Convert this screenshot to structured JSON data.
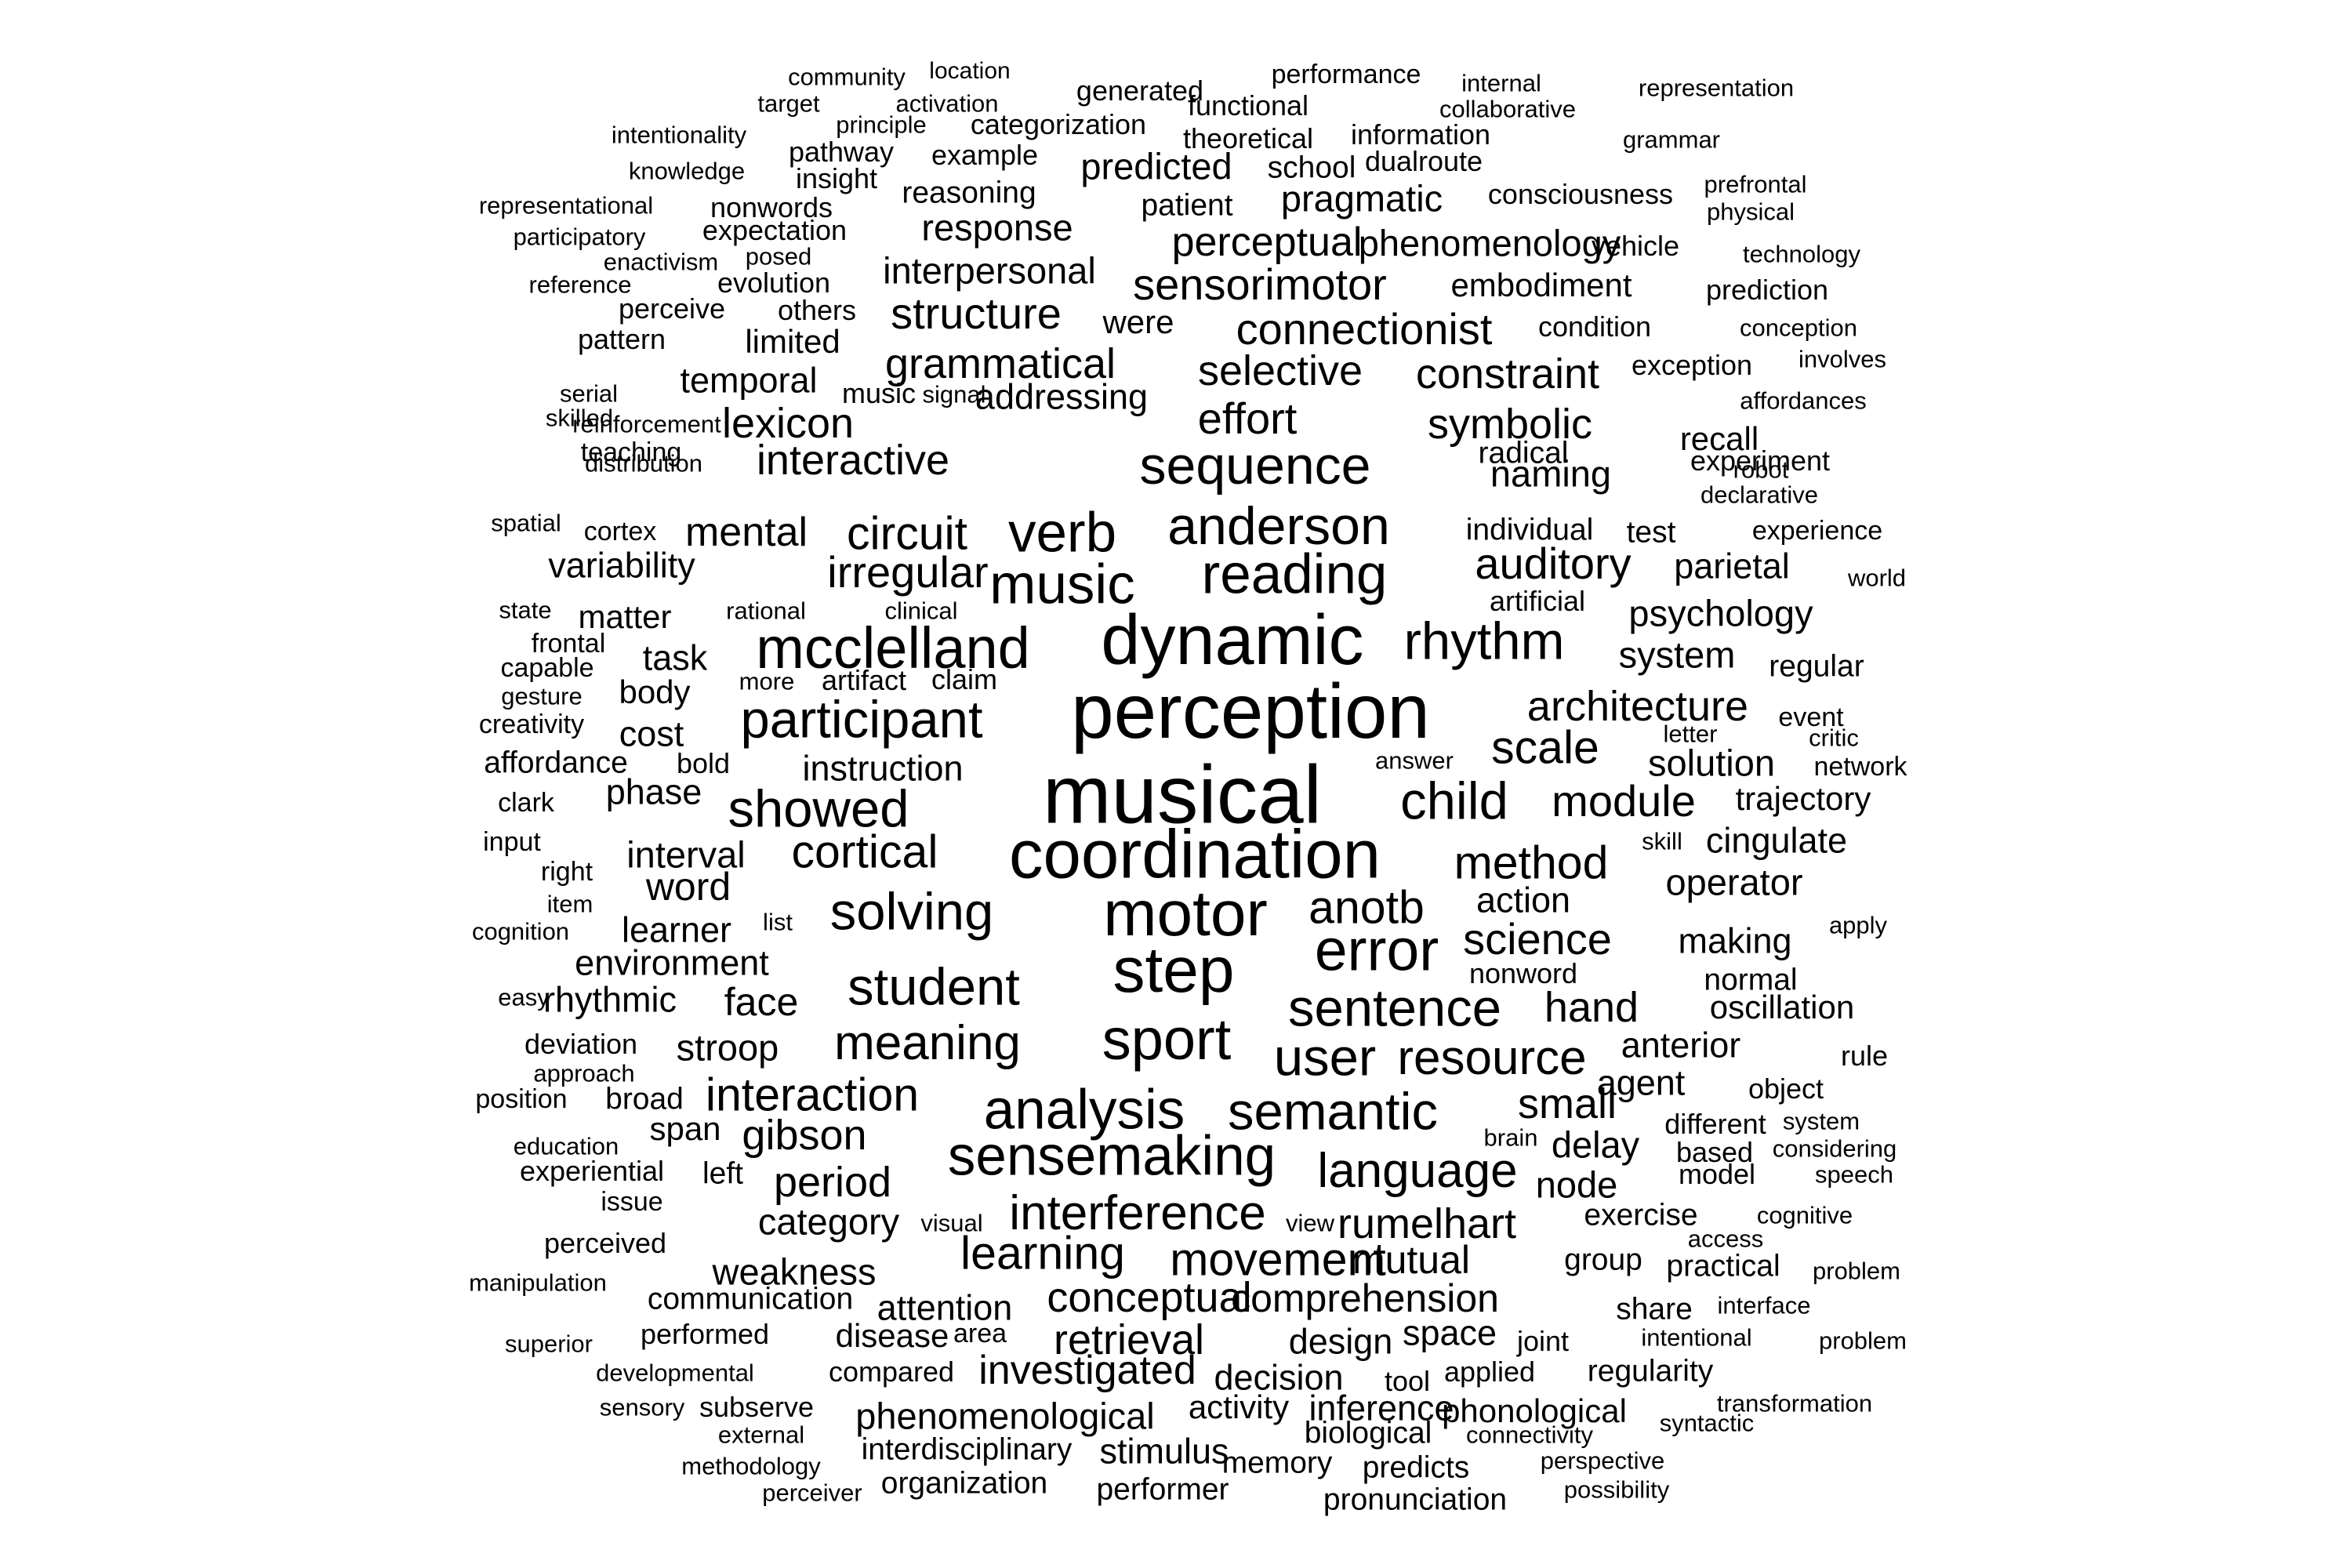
{
  "background_color": "#ffffff",
  "text_color": "#000000",
  "words": [
    {
      "text": "community"
    },
    {
      "text": "location"
    },
    {
      "text": "performance"
    },
    {
      "text": "internal"
    },
    {
      "text": "representation"
    },
    {
      "text": "target"
    },
    {
      "text": "activation"
    },
    {
      "text": "generated"
    },
    {
      "text": "functional"
    },
    {
      "text": "collaborative"
    },
    {
      "text": "principle"
    },
    {
      "text": "categorization"
    },
    {
      "text": "intentionality"
    },
    {
      "text": "theoretical"
    },
    {
      "text": "information"
    },
    {
      "text": "grammar"
    },
    {
      "text": "pathway"
    },
    {
      "text": "example"
    },
    {
      "text": "school"
    },
    {
      "text": "dualroute"
    },
    {
      "text": "knowledge"
    },
    {
      "text": "insight"
    },
    {
      "text": "predicted"
    },
    {
      "text": "prefrontal"
    },
    {
      "text": "reasoning"
    },
    {
      "text": "pragmatic"
    },
    {
      "text": "consciousness"
    },
    {
      "text": "representational"
    },
    {
      "text": "nonwords"
    },
    {
      "text": "patient"
    },
    {
      "text": "physical"
    },
    {
      "text": "participatory"
    },
    {
      "text": "expectation"
    },
    {
      "text": "response"
    },
    {
      "text": "perceptual"
    },
    {
      "text": "phenomenology"
    },
    {
      "text": "vehicle"
    },
    {
      "text": "technology"
    },
    {
      "text": "posed"
    },
    {
      "text": "enactivism"
    },
    {
      "text": "interpersonal"
    },
    {
      "text": "reference"
    },
    {
      "text": "evolution"
    },
    {
      "text": "sensorimotor"
    },
    {
      "text": "embodiment"
    },
    {
      "text": "prediction"
    },
    {
      "text": "perceive"
    },
    {
      "text": "others"
    },
    {
      "text": "structure"
    },
    {
      "text": "were"
    },
    {
      "text": "connectionist"
    },
    {
      "text": "condition"
    },
    {
      "text": "conception"
    },
    {
      "text": "pattern"
    },
    {
      "text": "limited"
    },
    {
      "text": "grammatical"
    },
    {
      "text": "selective"
    },
    {
      "text": "constraint"
    },
    {
      "text": "exception"
    },
    {
      "text": "involves"
    },
    {
      "text": "temporal"
    },
    {
      "text": "serial"
    },
    {
      "text": "music"
    },
    {
      "text": "signal"
    },
    {
      "text": "addressing"
    },
    {
      "text": "effort"
    },
    {
      "text": "symbolic"
    },
    {
      "text": "recall"
    },
    {
      "text": "affordances"
    },
    {
      "text": "skilled"
    },
    {
      "text": "reinforcement"
    },
    {
      "text": "lexicon"
    },
    {
      "text": "radical"
    },
    {
      "text": "naming"
    },
    {
      "text": "experiment"
    },
    {
      "text": "distribution"
    },
    {
      "text": "teaching"
    },
    {
      "text": "interactive"
    },
    {
      "text": "sequence"
    },
    {
      "text": "robot"
    },
    {
      "text": "declarative"
    },
    {
      "text": "spatial"
    },
    {
      "text": "anderson"
    },
    {
      "text": "individual"
    },
    {
      "text": "test"
    },
    {
      "text": "experience"
    },
    {
      "text": "cortex"
    },
    {
      "text": "mental"
    },
    {
      "text": "circuit"
    },
    {
      "text": "verb"
    },
    {
      "text": "variability"
    },
    {
      "text": "auditory"
    },
    {
      "text": "parietal"
    },
    {
      "text": "world"
    },
    {
      "text": "irregular"
    },
    {
      "text": "music"
    },
    {
      "text": "reading"
    },
    {
      "text": "artificial"
    },
    {
      "text": "state"
    },
    {
      "text": "matter"
    },
    {
      "text": "rational"
    },
    {
      "text": "clinical"
    },
    {
      "text": "psychology"
    },
    {
      "text": "frontal"
    },
    {
      "text": "task"
    },
    {
      "text": "mcclelland"
    },
    {
      "text": "dynamic"
    },
    {
      "text": "rhythm"
    },
    {
      "text": "system"
    },
    {
      "text": "capable"
    },
    {
      "text": "regular"
    },
    {
      "text": "more"
    },
    {
      "text": "artifact"
    },
    {
      "text": "claim"
    },
    {
      "text": "gesture"
    },
    {
      "text": "body"
    },
    {
      "text": "creativity"
    },
    {
      "text": "participant"
    },
    {
      "text": "perception"
    },
    {
      "text": "architecture"
    },
    {
      "text": "event"
    },
    {
      "text": "cost"
    },
    {
      "text": "letter"
    },
    {
      "text": "critic"
    },
    {
      "text": "affordance"
    },
    {
      "text": "bold"
    },
    {
      "text": "answer"
    },
    {
      "text": "scale"
    },
    {
      "text": "instruction"
    },
    {
      "text": "solution"
    },
    {
      "text": "network"
    },
    {
      "text": "phase"
    },
    {
      "text": "clark"
    },
    {
      "text": "showed"
    },
    {
      "text": "musical"
    },
    {
      "text": "child"
    },
    {
      "text": "module"
    },
    {
      "text": "trajectory"
    },
    {
      "text": "input"
    },
    {
      "text": "interval"
    },
    {
      "text": "cortical"
    },
    {
      "text": "skill"
    },
    {
      "text": "cingulate"
    },
    {
      "text": "right"
    },
    {
      "text": "coordination"
    },
    {
      "text": "method"
    },
    {
      "text": "word"
    },
    {
      "text": "operator"
    },
    {
      "text": "item"
    },
    {
      "text": "action"
    },
    {
      "text": "solving"
    },
    {
      "text": "motor"
    },
    {
      "text": "anotb"
    },
    {
      "text": "list"
    },
    {
      "text": "cognition"
    },
    {
      "text": "learner"
    },
    {
      "text": "apply"
    },
    {
      "text": "science"
    },
    {
      "text": "making"
    },
    {
      "text": "error"
    },
    {
      "text": "environment"
    },
    {
      "text": "step"
    },
    {
      "text": "nonword"
    },
    {
      "text": "student"
    },
    {
      "text": "normal"
    },
    {
      "text": "easy"
    },
    {
      "text": "rhythmic"
    },
    {
      "text": "face"
    },
    {
      "text": "hand"
    },
    {
      "text": "oscillation"
    },
    {
      "text": "sentence"
    },
    {
      "text": "sport"
    },
    {
      "text": "meaning"
    },
    {
      "text": "deviation"
    },
    {
      "text": "stroop"
    },
    {
      "text": "anterior"
    },
    {
      "text": "rule"
    },
    {
      "text": "user"
    },
    {
      "text": "resource"
    },
    {
      "text": "approach"
    },
    {
      "text": "agent"
    },
    {
      "text": "position"
    },
    {
      "text": "broad"
    },
    {
      "text": "interaction"
    },
    {
      "text": "object"
    },
    {
      "text": "small"
    },
    {
      "text": "analysis"
    },
    {
      "text": "semantic"
    },
    {
      "text": "different"
    },
    {
      "text": "system"
    },
    {
      "text": "span"
    },
    {
      "text": "brain"
    },
    {
      "text": "education"
    },
    {
      "text": "gibson"
    },
    {
      "text": "delay"
    },
    {
      "text": "based"
    },
    {
      "text": "considering"
    },
    {
      "text": "sensemaking"
    },
    {
      "text": "experiential"
    },
    {
      "text": "language"
    },
    {
      "text": "left"
    },
    {
      "text": "model"
    },
    {
      "text": "speech"
    },
    {
      "text": "period"
    },
    {
      "text": "node"
    },
    {
      "text": "issue"
    },
    {
      "text": "interference"
    },
    {
      "text": "rumelhart"
    },
    {
      "text": "category"
    },
    {
      "text": "visual"
    },
    {
      "text": "view"
    },
    {
      "text": "exercise"
    },
    {
      "text": "cognitive"
    },
    {
      "text": "perceived"
    },
    {
      "text": "access"
    },
    {
      "text": "learning"
    },
    {
      "text": "movement"
    },
    {
      "text": "mutual"
    },
    {
      "text": "group"
    },
    {
      "text": "practical"
    },
    {
      "text": "weakness"
    },
    {
      "text": "problem"
    },
    {
      "text": "manipulation"
    },
    {
      "text": "conceptual"
    },
    {
      "text": "communication"
    },
    {
      "text": "comprehension"
    },
    {
      "text": "share"
    },
    {
      "text": "interface"
    },
    {
      "text": "attention"
    },
    {
      "text": "performed"
    },
    {
      "text": "superior"
    },
    {
      "text": "retrieval"
    },
    {
      "text": "design"
    },
    {
      "text": "space"
    },
    {
      "text": "intentional"
    },
    {
      "text": "problem"
    },
    {
      "text": "disease"
    },
    {
      "text": "area"
    },
    {
      "text": "joint"
    },
    {
      "text": "developmental"
    },
    {
      "text": "compared"
    },
    {
      "text": "investigated"
    },
    {
      "text": "applied"
    },
    {
      "text": "regularity"
    },
    {
      "text": "decision"
    },
    {
      "text": "tool"
    },
    {
      "text": "sensory"
    },
    {
      "text": "subserve"
    },
    {
      "text": "transformation"
    },
    {
      "text": "activity"
    },
    {
      "text": "inference"
    },
    {
      "text": "phonological"
    },
    {
      "text": "phenomenological"
    },
    {
      "text": "syntactic"
    },
    {
      "text": "external"
    },
    {
      "text": "biological"
    },
    {
      "text": "connectivity"
    },
    {
      "text": "interdisciplinary"
    },
    {
      "text": "stimulus"
    },
    {
      "text": "methodology"
    },
    {
      "text": "memory"
    },
    {
      "text": "perspective"
    },
    {
      "text": "predicts"
    },
    {
      "text": "organization"
    },
    {
      "text": "perceiver"
    },
    {
      "text": "performer"
    },
    {
      "text": "possibility"
    },
    {
      "text": "pronunciation"
    }
  ]
}
